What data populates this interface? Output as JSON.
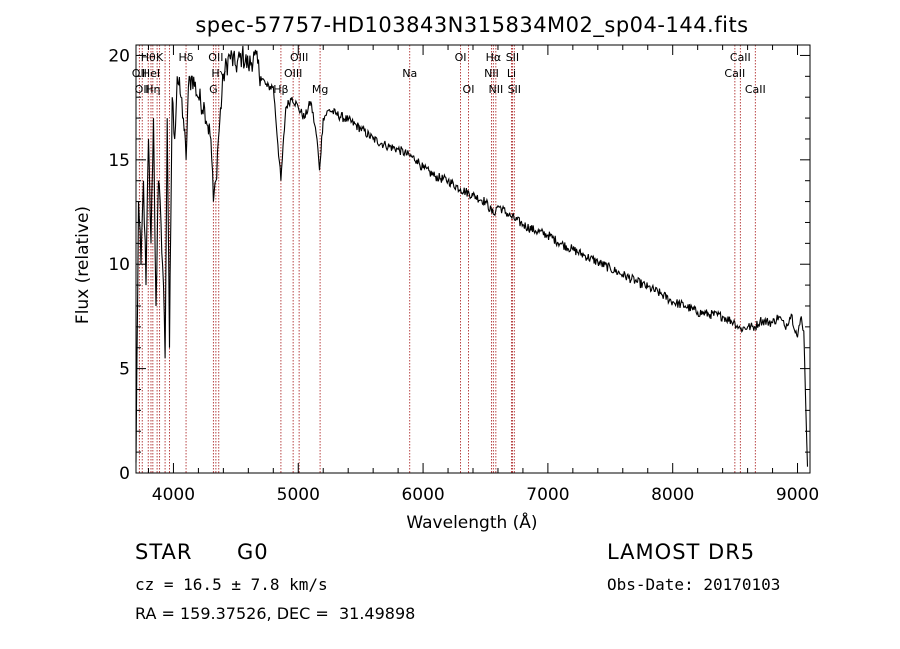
{
  "chart_data": {
    "type": "line",
    "title": "spec-57757-HD103843N315834M02_sp04-144.fits",
    "xlabel": "Wavelength (Å)",
    "ylabel": "Flux (relative)",
    "xlim": [
      3700,
      9100
    ],
    "ylim": [
      0,
      20.5
    ],
    "x_ticks": [
      4000,
      5000,
      6000,
      7000,
      8000,
      9000
    ],
    "y_ticks": [
      0,
      5,
      10,
      15,
      20
    ],
    "grid": false,
    "line_color": "#000000",
    "marker_color": "#b03030",
    "series": [
      {
        "x": [
          3700,
          3720,
          3740,
          3760,
          3780,
          3800,
          3820,
          3840,
          3860,
          3880,
          3900,
          3920,
          3933,
          3950,
          3968,
          3990,
          4010,
          4030,
          4060,
          4080,
          4101,
          4120,
          4150,
          4200,
          4250,
          4300,
          4320,
          4340,
          4360,
          4400,
          4450,
          4500,
          4550,
          4600,
          4650,
          4700,
          4750,
          4800,
          4861,
          4900,
          4950,
          5000,
          5050,
          5100,
          5150,
          5170,
          5200,
          5250,
          5300,
          5400,
          5500,
          5600,
          5700,
          5800,
          5890,
          5950,
          6000,
          6100,
          6200,
          6300,
          6400,
          6500,
          6563,
          6600,
          6700,
          6800,
          6900,
          7000,
          7100,
          7200,
          7300,
          7400,
          7500,
          7600,
          7700,
          7800,
          7900,
          8000,
          8100,
          8200,
          8300,
          8400,
          8498,
          8542,
          8600,
          8662,
          8700,
          8800,
          8850,
          8900,
          8950,
          9000,
          9030,
          9050,
          9080
        ],
        "y": [
          0.5,
          13,
          10,
          14,
          9,
          16,
          11,
          17,
          8,
          14,
          12,
          9,
          5.5,
          17,
          6,
          18,
          16,
          19,
          18,
          17,
          15,
          18.5,
          19,
          18,
          17.5,
          16,
          13,
          14,
          16,
          19,
          20,
          19.5,
          20,
          19.5,
          20,
          19,
          18.5,
          18.5,
          14,
          17.5,
          18,
          17.5,
          17,
          17.8,
          16,
          14.5,
          17,
          17.4,
          17.2,
          16.9,
          16.5,
          16,
          15.7,
          15.5,
          15.2,
          15,
          14.6,
          14.2,
          14.0,
          13.6,
          13.3,
          13.0,
          12.4,
          12.8,
          12.3,
          11.9,
          11.6,
          11.4,
          11.0,
          10.7,
          10.4,
          10.1,
          9.8,
          9.5,
          9.2,
          8.9,
          8.6,
          8.2,
          8.0,
          7.7,
          7.6,
          7.5,
          7.2,
          6.9,
          7.0,
          7.0,
          7.3,
          7.2,
          7.5,
          7.0,
          7.6,
          6.5,
          7.5,
          6.8,
          0.3
        ]
      }
    ],
    "line_markers": [
      {
        "wl": 3727,
        "row": 1,
        "label": "OII"
      },
      {
        "wl": 3750,
        "row": 2,
        "label": "OII"
      },
      {
        "wl": 3798,
        "row": 0,
        "label": "Hθ"
      },
      {
        "wl": 3820,
        "row": 1,
        "label": "HeI"
      },
      {
        "wl": 3835,
        "row": 2,
        "label": "Hη"
      },
      {
        "wl": 3869,
        "row": 1,
        "label": ""
      },
      {
        "wl": 3889,
        "row": 0,
        "label": "K"
      },
      {
        "wl": 3933,
        "row": 1,
        "label": ""
      },
      {
        "wl": 3968,
        "row": 2,
        "label": ""
      },
      {
        "wl": 4101,
        "row": 0,
        "label": "Hδ"
      },
      {
        "wl": 4320,
        "row": 2,
        "label": "G"
      },
      {
        "wl": 4340,
        "row": 0,
        "label": "OII"
      },
      {
        "wl": 4363,
        "row": 1,
        "label": "Hγ"
      },
      {
        "wl": 4861,
        "row": 2,
        "label": "Hβ"
      },
      {
        "wl": 4959,
        "row": 1,
        "label": "OIII"
      },
      {
        "wl": 5007,
        "row": 0,
        "label": "OIII"
      },
      {
        "wl": 5175,
        "row": 2,
        "label": "Mg"
      },
      {
        "wl": 5893,
        "row": 1,
        "label": "Na"
      },
      {
        "wl": 6300,
        "row": 0,
        "label": "OI"
      },
      {
        "wl": 6364,
        "row": 2,
        "label": "OI"
      },
      {
        "wl": 6548,
        "row": 1,
        "label": "NII"
      },
      {
        "wl": 6563,
        "row": 0,
        "label": "Hα"
      },
      {
        "wl": 6583,
        "row": 2,
        "label": "NII"
      },
      {
        "wl": 6708,
        "row": 1,
        "label": "Li"
      },
      {
        "wl": 6716,
        "row": 0,
        "label": "SII"
      },
      {
        "wl": 6731,
        "row": 2,
        "label": "SII"
      },
      {
        "wl": 8498,
        "row": 1,
        "label": "CaII"
      },
      {
        "wl": 8542,
        "row": 0,
        "label": "CaII"
      },
      {
        "wl": 8662,
        "row": 2,
        "label": "CaII"
      }
    ]
  },
  "info": {
    "class": "STAR",
    "subclass": "G0",
    "survey": "LAMOST DR5",
    "cz": "cz = 16.5 ± 7.8 km/s",
    "obs_date": "Obs-Date: 20170103",
    "radec": "RA = 159.37526, DEC =  31.49898"
  }
}
